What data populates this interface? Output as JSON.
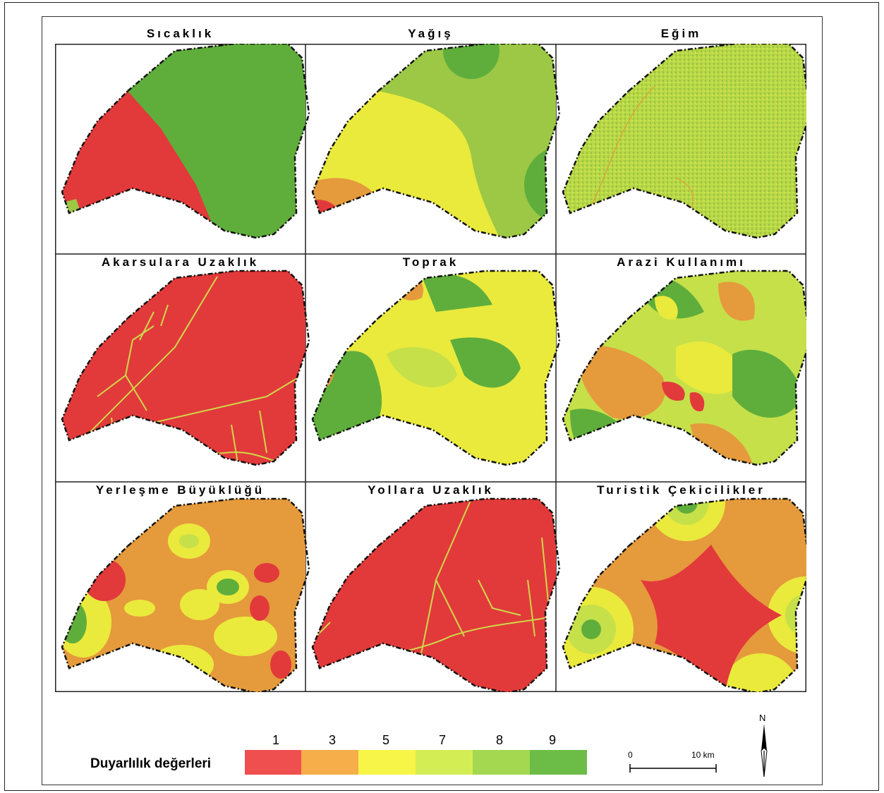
{
  "panels": [
    {
      "title": "Sıcaklık"
    },
    {
      "title": "Yağış"
    },
    {
      "title": "Eğim"
    },
    {
      "title": "Akarsulara Uzaklık"
    },
    {
      "title": "Toprak"
    },
    {
      "title": "Arazi Kullanımı"
    },
    {
      "title": "Yerleşme Büyüklüğü"
    },
    {
      "title": "Yollara Uzaklık"
    },
    {
      "title": "Turistik Çekicilikler"
    }
  ],
  "legend": {
    "label": "Duyarlılık değerleri",
    "classes": [
      {
        "value": "1",
        "color": "#f04f4f"
      },
      {
        "value": "3",
        "color": "#f5ae4a"
      },
      {
        "value": "5",
        "color": "#f7f548"
      },
      {
        "value": "7",
        "color": "#d3ee55"
      },
      {
        "value": "8",
        "color": "#a4d850"
      },
      {
        "value": "9",
        "color": "#6cbd47"
      }
    ]
  },
  "scale": {
    "start": "0",
    "end": "10 km"
  },
  "north": {
    "label": "N"
  },
  "colors": {
    "red": "#e23a3a",
    "orange": "#e59a3c",
    "yellow": "#eaea3c",
    "lightgreen": "#c6e04a",
    "green": "#9cc845",
    "darkgreen": "#5fae3c"
  }
}
